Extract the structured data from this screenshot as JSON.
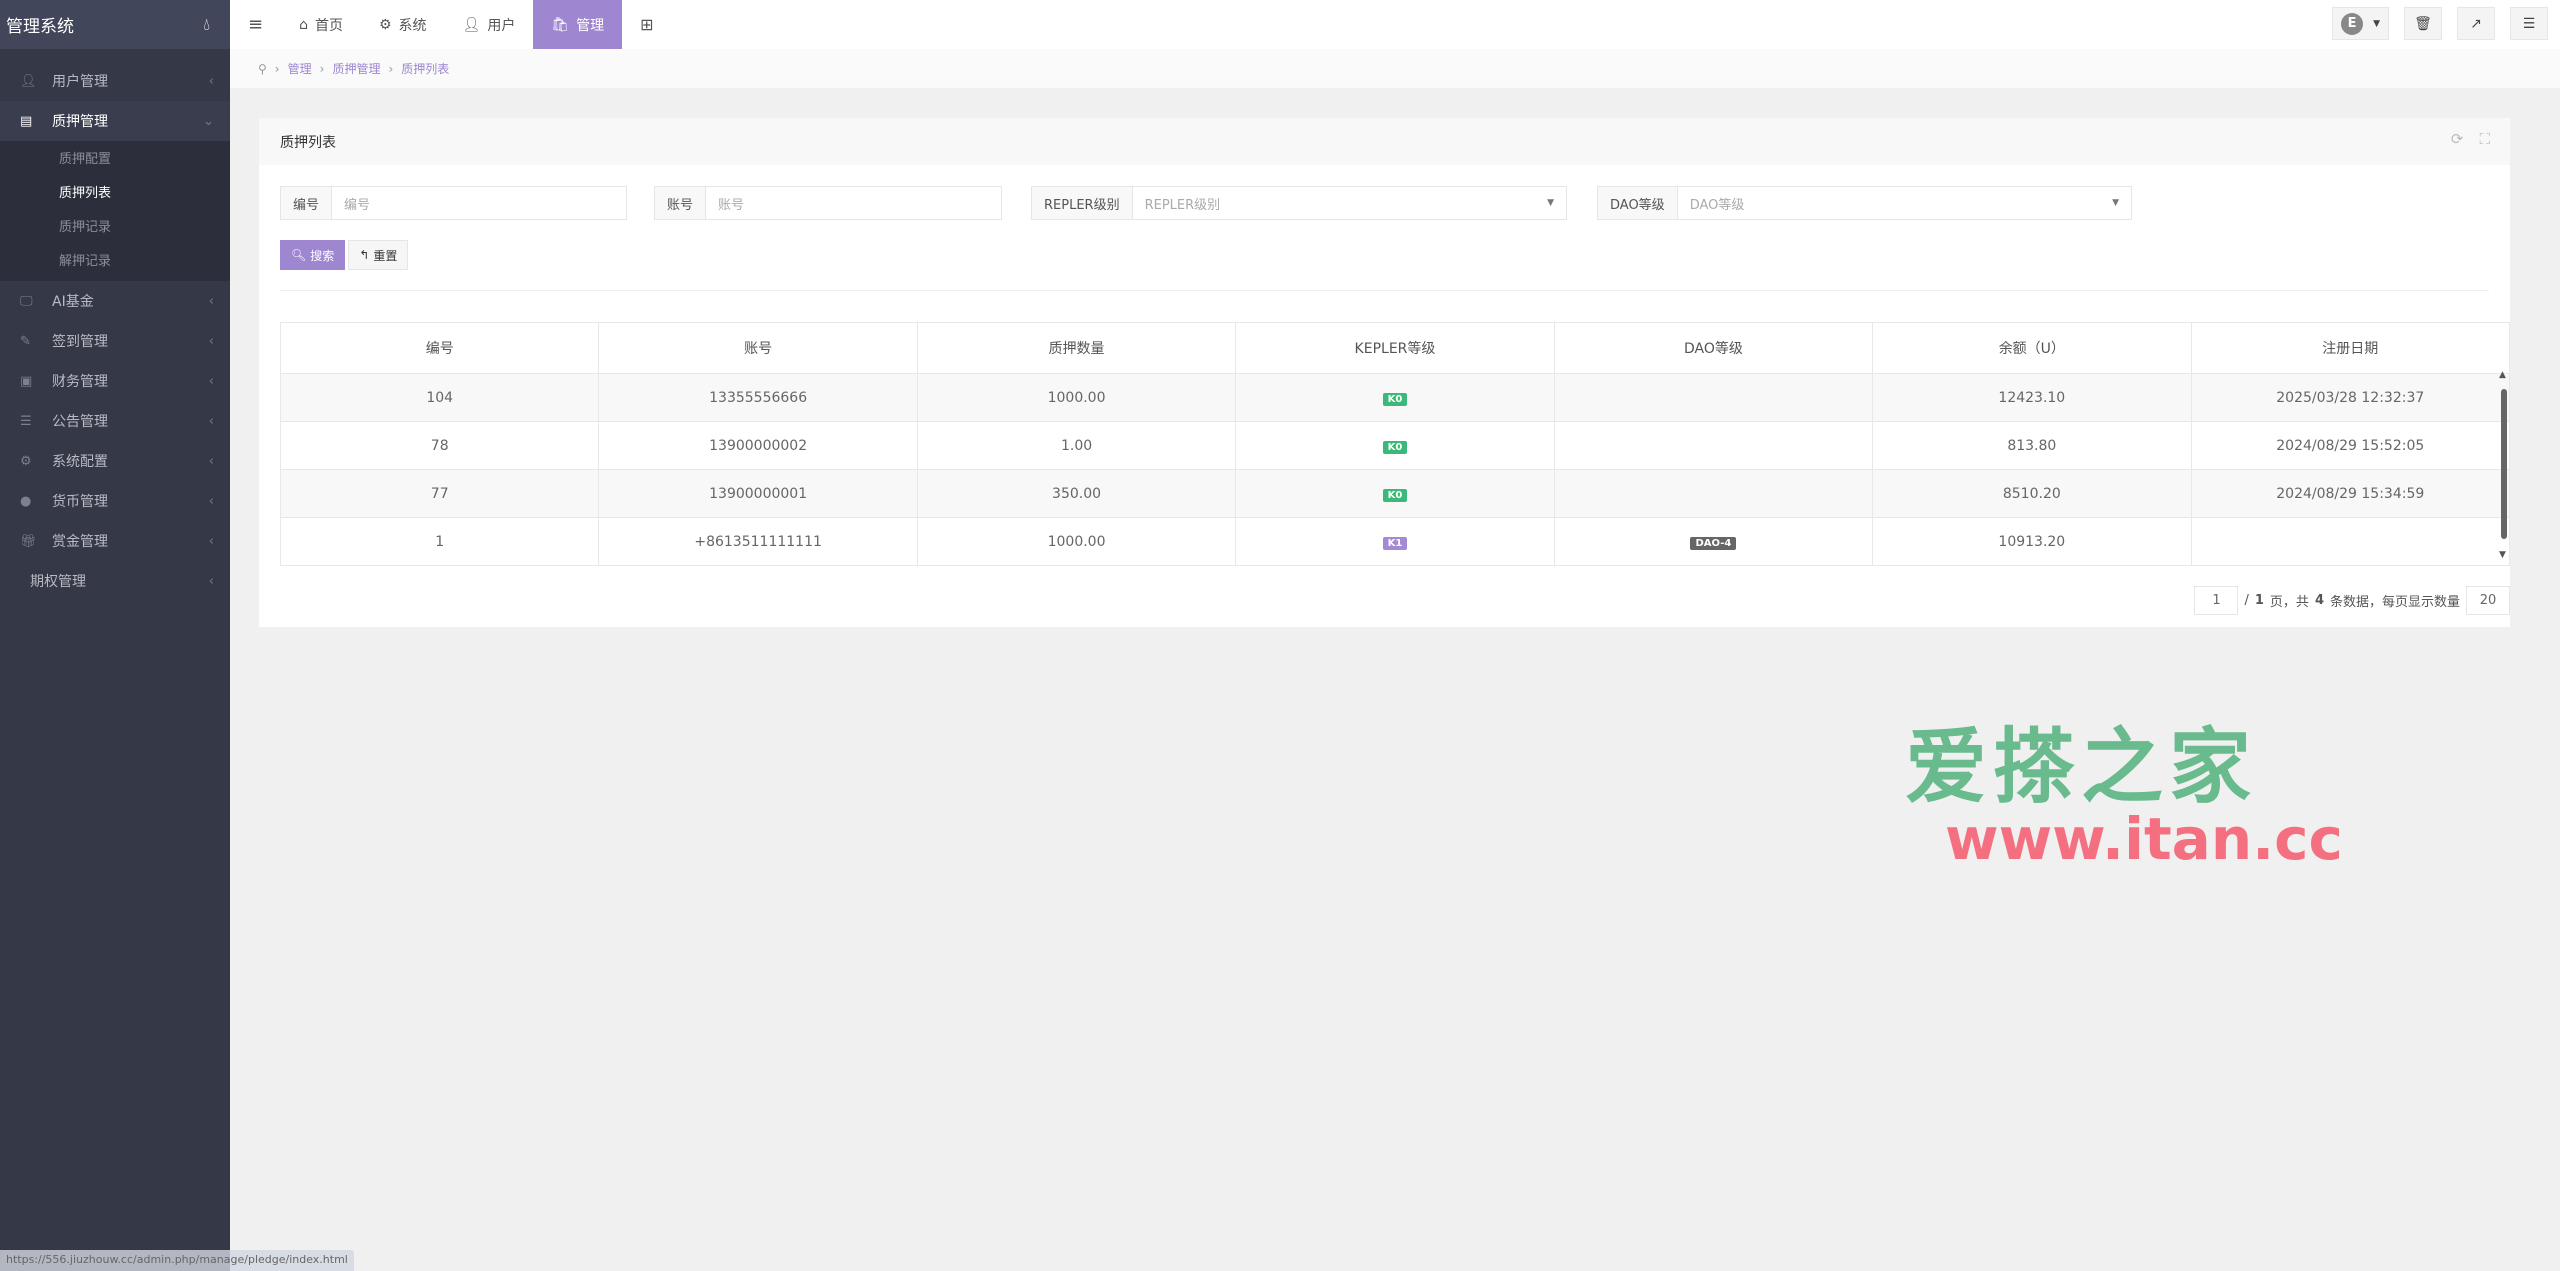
{
  "app": {
    "title": "管理系统"
  },
  "sidebar": {
    "items": [
      {
        "label": "用户管理",
        "icon": "user-icon"
      },
      {
        "label": "质押管理",
        "icon": "list-icon",
        "open": true,
        "children": [
          {
            "label": "质押配置"
          },
          {
            "label": "质押列表",
            "active": true
          },
          {
            "label": "质押记录"
          },
          {
            "label": "解押记录"
          }
        ]
      },
      {
        "label": "AI基金",
        "icon": "monitor-icon"
      },
      {
        "label": "签到管理",
        "icon": "edit-icon"
      },
      {
        "label": "财务管理",
        "icon": "money-icon"
      },
      {
        "label": "公告管理",
        "icon": "bars-icon"
      },
      {
        "label": "系统配置",
        "icon": "cogs-icon"
      },
      {
        "label": "货币管理",
        "icon": "coin-icon"
      },
      {
        "label": "赏金管理",
        "icon": "gift-icon"
      },
      {
        "label": "期权管理",
        "icon": ""
      }
    ]
  },
  "topnav": {
    "tabs": [
      {
        "label": "首页",
        "icon": "home-icon"
      },
      {
        "label": "系统",
        "icon": "gear-icon"
      },
      {
        "label": "用户",
        "icon": "user-icon"
      },
      {
        "label": "管理",
        "icon": "shopping-bag-icon",
        "active": true
      }
    ],
    "avatar_letter": "E"
  },
  "breadcrumb": [
    "管理",
    "质押管理",
    "质押列表"
  ],
  "panel": {
    "title": "质押列表"
  },
  "filters": [
    {
      "label": "编号",
      "placeholder": "编号"
    },
    {
      "label": "账号",
      "placeholder": "账号"
    },
    {
      "label": "REPLER级别",
      "placeholder": "REPLER级别",
      "type": "select"
    },
    {
      "label": "DAO等级",
      "placeholder": "DAO等级",
      "type": "select"
    }
  ],
  "buttons": {
    "search": "搜索",
    "reset": "重置"
  },
  "table": {
    "columns": [
      "编号",
      "账号",
      "质押数量",
      "KEPLER等级",
      "DAO等级",
      "余额（U）",
      "注册日期"
    ],
    "rows": [
      {
        "id": "104",
        "account": "13355556666",
        "amount": "1000.00",
        "kepler": "K0",
        "dao": "",
        "balance": "12423.10",
        "date": "2025/03/28 12:32:37"
      },
      {
        "id": "78",
        "account": "13900000002",
        "amount": "1.00",
        "kepler": "K0",
        "dao": "",
        "balance": "813.80",
        "date": "2024/08/29 15:52:05"
      },
      {
        "id": "77",
        "account": "13900000001",
        "amount": "350.00",
        "kepler": "K0",
        "dao": "",
        "balance": "8510.20",
        "date": "2024/08/29 15:34:59"
      },
      {
        "id": "1",
        "account": "+8613511111111",
        "amount": "1000.00",
        "kepler": "K1",
        "dao": "DAO-4",
        "balance": "10913.20",
        "date": ""
      }
    ]
  },
  "pager": {
    "page": "1",
    "total_pages": "1",
    "total": "4",
    "per_page": "20",
    "t1": "/",
    "t2": "页，共",
    "t3": "条数据，每页显示数量"
  },
  "watermark": {
    "line1": "爱搽之家",
    "line2": "www.itan.cc"
  },
  "status_url": "https://556.jiuzhouw.cc/admin.php/manage/pledge/index.html",
  "colors": {
    "accent": "#9f86d0",
    "sidebar": "#353846",
    "k0": "#3cb878",
    "k1": "#a48ad4",
    "dao": "#666666"
  }
}
